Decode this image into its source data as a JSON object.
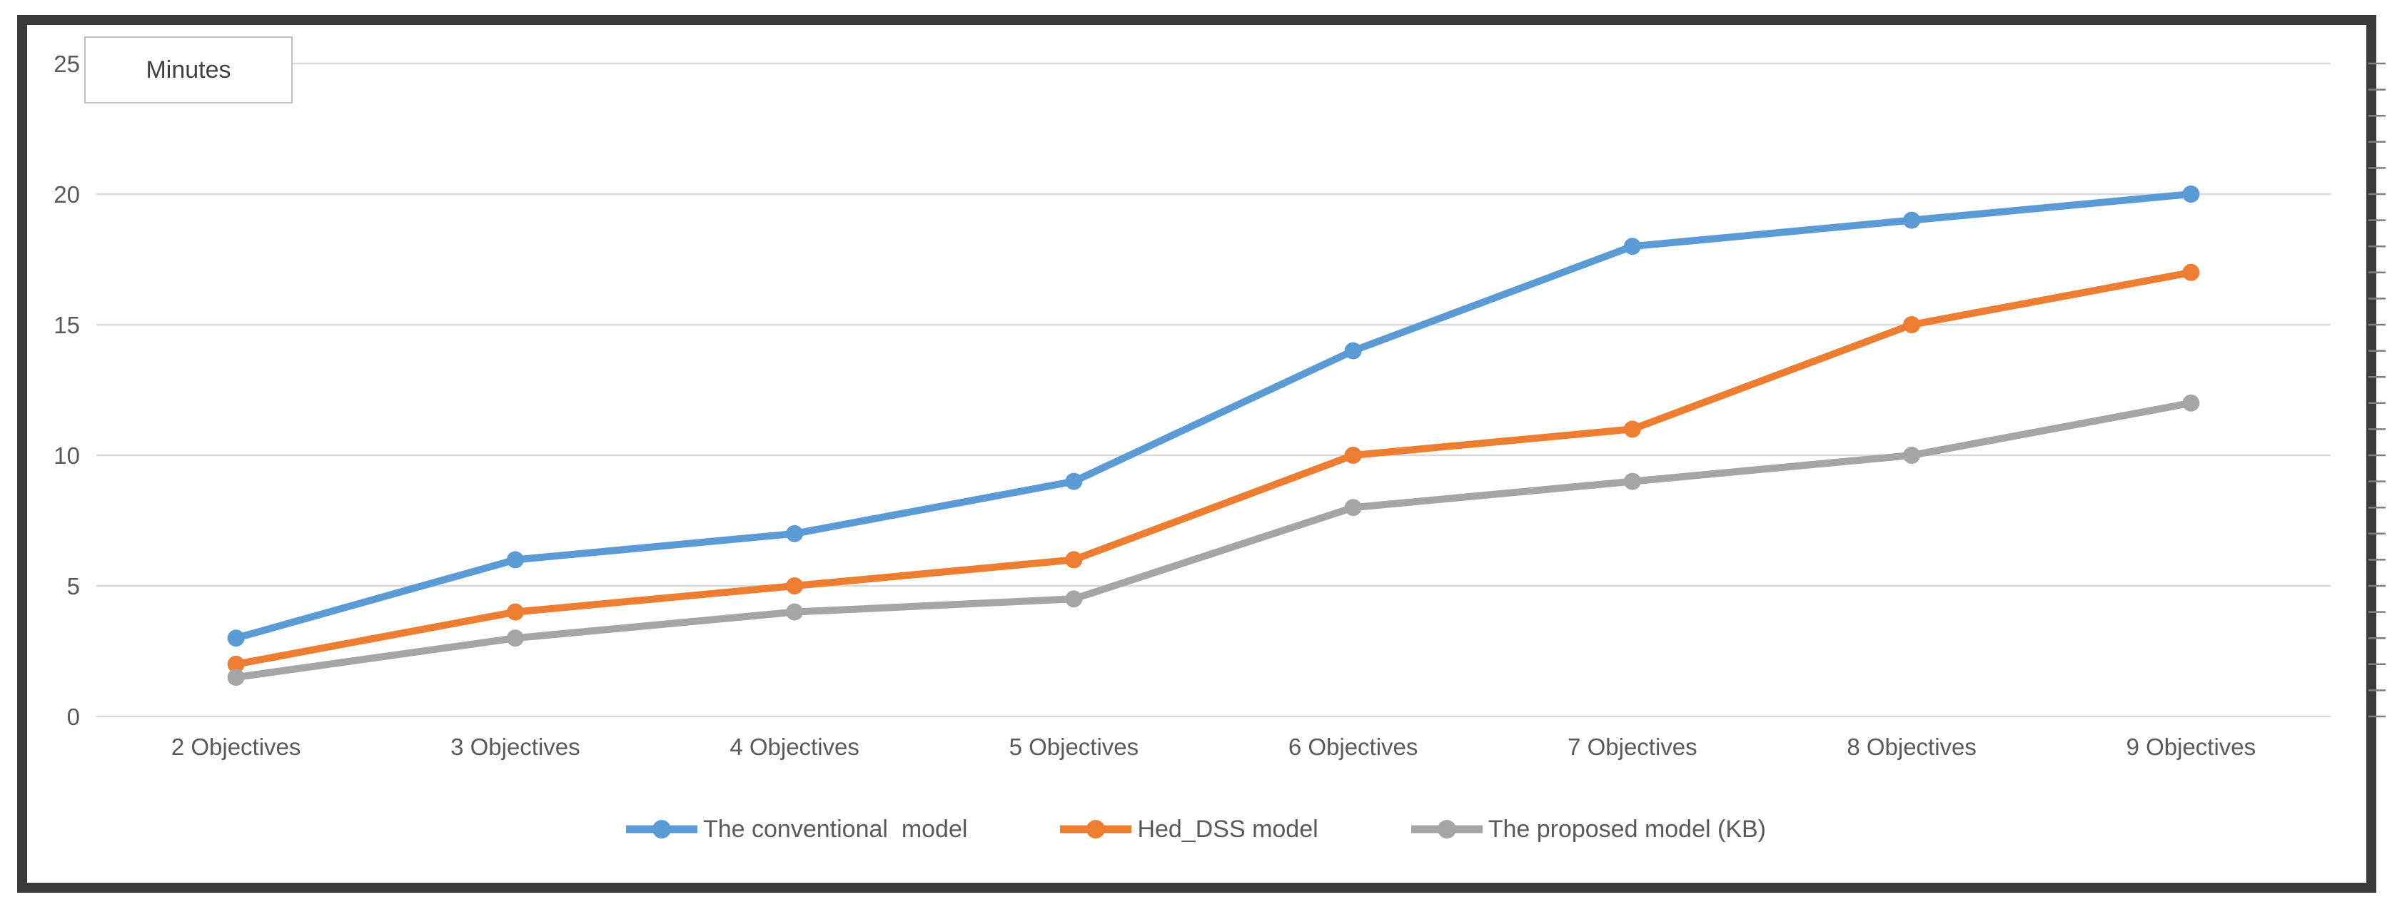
{
  "chart_data": {
    "type": "line",
    "axis_title": "Minutes",
    "categories": [
      "2 Objectives",
      "3 Objectives",
      "4 Objectives",
      "5 Objectives",
      "6 Objectives",
      "7 Objectives",
      "8 Objectives",
      "9 Objectives"
    ],
    "series": [
      {
        "name": "The conventional  model",
        "color": "#5B9BD5",
        "marker": "circle",
        "values": [
          3,
          6,
          7,
          9,
          14,
          18,
          19,
          20
        ]
      },
      {
        "name": "Hed_DSS model",
        "color": "#ED7D31",
        "marker": "circle",
        "values": [
          2,
          4,
          5,
          6,
          10,
          11,
          15,
          17
        ]
      },
      {
        "name": "The proposed model (KB)",
        "color": "#A5A5A5",
        "marker": "circle",
        "values": [
          1.5,
          3,
          4,
          4.5,
          8,
          9,
          10,
          12
        ]
      }
    ],
    "y_axis": {
      "min": 0,
      "max": 25,
      "step": 5,
      "labels": [
        "0",
        "5",
        "10",
        "15",
        "20",
        "25"
      ]
    },
    "right_axis_ticks": {
      "min": 0,
      "max": 25,
      "step": 1
    },
    "grid": true,
    "legend_position": "bottom",
    "ylabel": "Minutes",
    "xlabel": ""
  },
  "colors": {
    "gridline": "#D9D9D9",
    "axis_text": "#595959",
    "frame": "#3B3B3B",
    "right_tick": "#7F7F7F",
    "background": "#FFFFFF"
  }
}
